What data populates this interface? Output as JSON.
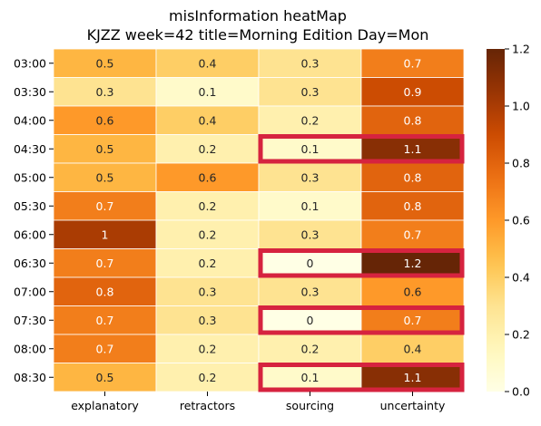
{
  "chart_data": {
    "type": "heatmap",
    "title": "misInformation heatMap",
    "subtitle": "KJZZ week=42 title=Morning Edition Day=Mon",
    "xlabel": "",
    "ylabel": "",
    "columns": [
      "explanatory",
      "retractors",
      "sourcing",
      "uncertainty"
    ],
    "rows": [
      "03:00",
      "03:30",
      "04:00",
      "04:30",
      "05:00",
      "05:30",
      "06:00",
      "06:30",
      "07:00",
      "07:30",
      "08:00",
      "08:30"
    ],
    "values": [
      [
        0.5,
        0.4,
        0.3,
        0.7
      ],
      [
        0.3,
        0.1,
        0.3,
        0.9
      ],
      [
        0.6,
        0.4,
        0.2,
        0.8
      ],
      [
        0.5,
        0.2,
        0.1,
        1.1
      ],
      [
        0.5,
        0.6,
        0.3,
        0.8
      ],
      [
        0.7,
        0.2,
        0.1,
        0.8
      ],
      [
        1,
        0.2,
        0.3,
        0.7
      ],
      [
        0.7,
        0.2,
        0,
        1.2
      ],
      [
        0.8,
        0.3,
        0.3,
        0.6
      ],
      [
        0.7,
        0.3,
        0,
        0.7
      ],
      [
        0.7,
        0.2,
        0.2,
        0.4
      ],
      [
        0.5,
        0.2,
        0.1,
        1.1
      ]
    ],
    "highlighted_rows": [
      "04:30",
      "06:30",
      "07:30",
      "08:30"
    ],
    "highlighted_columns": [
      "sourcing",
      "uncertainty"
    ],
    "highlight_color": "#d6233f",
    "colorbar": {
      "range": [
        0,
        1.2
      ],
      "ticks": [
        "0.0",
        "0.2",
        "0.4",
        "0.6",
        "0.8",
        "1.0",
        "1.2"
      ],
      "colormap": "YlOrBr"
    }
  }
}
